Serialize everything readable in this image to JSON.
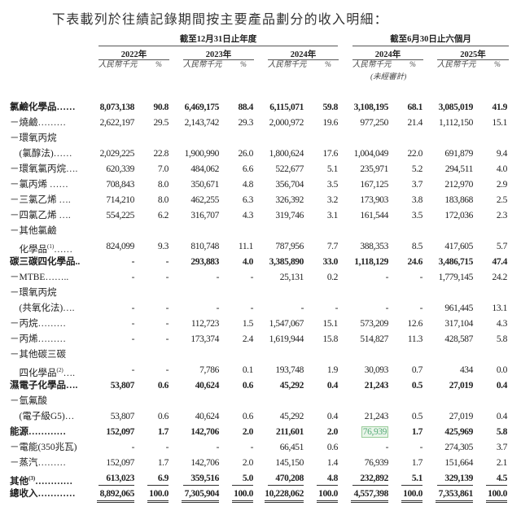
{
  "title": "下表載列於往績記錄期間按主要產品劃分的收入明細：",
  "header": {
    "period_annual": "截至12月31日止年度",
    "period_half": "截至6月30日止六個月",
    "years": [
      "2022年",
      "2023年",
      "2024年",
      "2024年",
      "2025年"
    ],
    "unit_value": "人民幣千元",
    "unit_pct": "%",
    "unaudited": "(未經審計)"
  },
  "rows": [
    {
      "label": "氯鹼化學品……",
      "bold": true,
      "values": [
        "8,073,138",
        "90.8",
        "6,469,175",
        "88.4",
        "6,115,071",
        "59.8",
        "3,108,195",
        "68.1",
        "3,085,019",
        "41.9"
      ]
    },
    {
      "label": "－燒鹼………",
      "values": [
        "2,622,197",
        "29.5",
        "2,143,742",
        "29.3",
        "2,000,972",
        "19.6",
        "977,250",
        "21.4",
        "1,112,150",
        "15.1"
      ]
    },
    {
      "label": "－環氧丙烷"
    },
    {
      "label": "　(氯醇法)……",
      "values": [
        "2,029,225",
        "22.8",
        "1,900,990",
        "26.0",
        "1,800,624",
        "17.6",
        "1,004,049",
        "22.0",
        "691,879",
        "9.4"
      ]
    },
    {
      "label": "－環氧氯丙烷….",
      "values": [
        "620,339",
        "7.0",
        "484,062",
        "6.6",
        "522,677",
        "5.1",
        "235,971",
        "5.2",
        "294,511",
        "4.0"
      ]
    },
    {
      "label": "－氯丙烯 ……",
      "values": [
        "708,843",
        "8.0",
        "350,671",
        "4.8",
        "356,704",
        "3.5",
        "167,125",
        "3.7",
        "212,970",
        "2.9"
      ]
    },
    {
      "label": "－三氯乙烯 ….",
      "values": [
        "714,210",
        "8.0",
        "462,255",
        "6.3",
        "326,392",
        "3.2",
        "173,903",
        "3.8",
        "183,868",
        "2.5"
      ]
    },
    {
      "label": "－四氯乙烯 ….",
      "values": [
        "554,225",
        "6.2",
        "316,707",
        "4.3",
        "319,746",
        "3.1",
        "161,544",
        "3.5",
        "172,036",
        "2.3"
      ]
    },
    {
      "label": "－其他氯鹼"
    },
    {
      "label": "　化學品",
      "note": "(1)",
      "suffix": "……",
      "values": [
        "824,099",
        "9.3",
        "810,748",
        "11.1",
        "787,956",
        "7.7",
        "388,353",
        "8.5",
        "417,605",
        "5.7"
      ]
    },
    {
      "label": "碳三碳四化學品..",
      "bold": true,
      "values": [
        "-",
        "-",
        "293,883",
        "4.0",
        "3,385,890",
        "33.0",
        "1,118,129",
        "24.6",
        "3,486,715",
        "47.4"
      ]
    },
    {
      "label": "－MTBE……..",
      "values": [
        "-",
        "-",
        "-",
        "-",
        "25,131",
        "0.2",
        "-",
        "-",
        "1,779,145",
        "24.2"
      ]
    },
    {
      "label": "－環氧丙烷"
    },
    {
      "label": "　(共氧化法)….",
      "values": [
        "-",
        "-",
        "-",
        "-",
        "-",
        "-",
        "-",
        "-",
        "961,445",
        "13.1"
      ]
    },
    {
      "label": "－丙烷………",
      "values": [
        "-",
        "-",
        "112,723",
        "1.5",
        "1,547,067",
        "15.1",
        "573,209",
        "12.6",
        "317,104",
        "4.3"
      ]
    },
    {
      "label": "－丙烯………",
      "values": [
        "-",
        "-",
        "173,374",
        "2.4",
        "1,619,944",
        "15.8",
        "514,827",
        "11.3",
        "428,587",
        "5.8"
      ]
    },
    {
      "label": "－其他碳三碳"
    },
    {
      "label": "　四化學品",
      "note": "(2)",
      "suffix": "….",
      "values": [
        "-",
        "-",
        "7,786",
        "0.1",
        "193,748",
        "1.9",
        "30,093",
        "0.7",
        "434",
        "0.0"
      ]
    },
    {
      "label": "濕電子化學品….",
      "bold": true,
      "values": [
        "53,807",
        "0.6",
        "40,624",
        "0.6",
        "45,292",
        "0.4",
        "21,243",
        "0.5",
        "27,019",
        "0.4"
      ]
    },
    {
      "label": "－氫氟酸"
    },
    {
      "label": "　(電子級G5)…",
      "values": [
        "53,807",
        "0.6",
        "40,624",
        "0.6",
        "45,292",
        "0.4",
        "21,243",
        "0.5",
        "27,019",
        "0.4"
      ]
    },
    {
      "label": "能源…………",
      "bold": true,
      "highlight": 6,
      "values": [
        "152,097",
        "1.7",
        "142,706",
        "2.0",
        "211,601",
        "2.0",
        "76,939",
        "1.7",
        "425,969",
        "5.8"
      ]
    },
    {
      "label": "－電能(350兆瓦)",
      "values": [
        "-",
        "-",
        "-",
        "-",
        "66,451",
        "0.6",
        "-",
        "-",
        "274,305",
        "3.7"
      ]
    },
    {
      "label": "－蒸汽………",
      "values": [
        "152,097",
        "1.7",
        "142,706",
        "2.0",
        "145,150",
        "1.4",
        "76,939",
        "1.7",
        "151,664",
        "2.1"
      ]
    },
    {
      "label": "其他",
      "note": "(3)",
      "suffix": "…………",
      "bold": true,
      "underline": "single",
      "values": [
        "613,023",
        "6.9",
        "359,516",
        "5.0",
        "470,208",
        "4.8",
        "232,892",
        "5.1",
        "329,139",
        "4.5"
      ]
    },
    {
      "label": "總收入…………",
      "bold": true,
      "underline": "double",
      "values": [
        "8,892,065",
        "100.0",
        "7,305,904",
        "100.0",
        "10,228,062",
        "100.0",
        "4,557,398",
        "100.0",
        "7,353,861",
        "100.0"
      ]
    }
  ]
}
